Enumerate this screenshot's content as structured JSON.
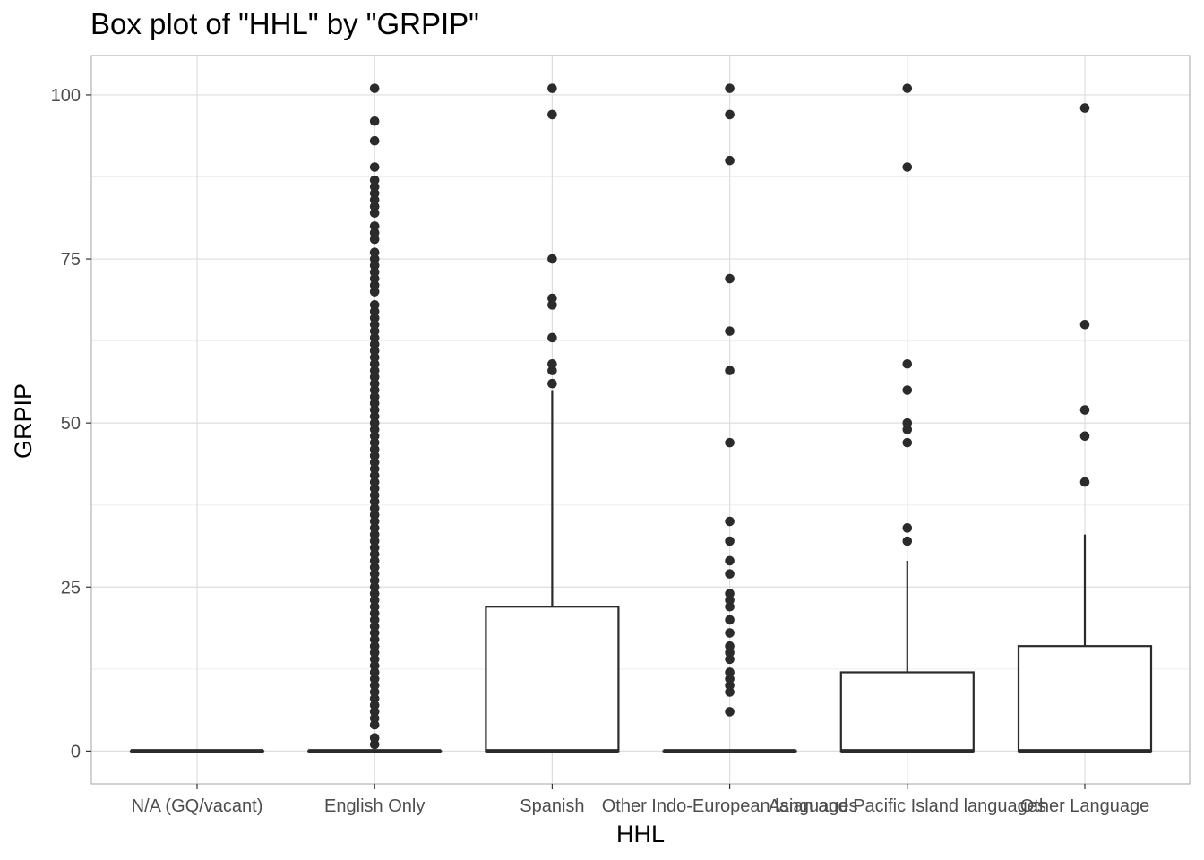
{
  "chart_data": {
    "type": "box",
    "title": "Box plot of \"HHL\" by \"GRPIP\"",
    "xlabel": "HHL",
    "ylabel": "GRPIP",
    "ylim": [
      -5,
      106
    ],
    "yticks": [
      0,
      25,
      50,
      75,
      100
    ],
    "grid": true,
    "categories": [
      "N/A (GQ/vacant)",
      "English Only",
      "Spanish",
      "Other Indo-European languages",
      "Asian and Pacific Island languages",
      "Other Language"
    ],
    "boxes": [
      {
        "q1": 0,
        "median": 0,
        "q3": 0,
        "whisker_low": 0,
        "whisker_high": 0,
        "outliers": []
      },
      {
        "q1": 0,
        "median": 0,
        "q3": 0,
        "whisker_low": 0,
        "whisker_high": 0,
        "outliers": [
          1,
          2,
          4,
          5,
          6,
          7,
          8,
          9,
          10,
          11,
          12,
          13,
          14,
          15,
          16,
          17,
          18,
          19,
          20,
          21,
          22,
          23,
          24,
          25,
          26,
          27,
          28,
          29,
          30,
          31,
          32,
          33,
          34,
          35,
          36,
          37,
          38,
          39,
          40,
          41,
          42,
          43,
          44,
          45,
          46,
          47,
          48,
          49,
          50,
          51,
          52,
          53,
          54,
          55,
          56,
          57,
          58,
          59,
          60,
          61,
          62,
          63,
          64,
          65,
          66,
          67,
          68,
          70,
          71,
          72,
          73,
          74,
          75,
          76,
          78,
          79,
          80,
          82,
          83,
          84,
          85,
          86,
          87,
          89,
          93,
          96,
          101
        ]
      },
      {
        "q1": 0,
        "median": 0,
        "q3": 22,
        "whisker_low": 0,
        "whisker_high": 55,
        "outliers": [
          56,
          58,
          59,
          63,
          68,
          69,
          75,
          97,
          101
        ]
      },
      {
        "q1": 0,
        "median": 0,
        "q3": 0,
        "whisker_low": 0,
        "whisker_high": 0,
        "outliers": [
          6,
          9,
          10,
          11,
          12,
          14,
          15,
          16,
          18,
          20,
          22,
          23,
          24,
          27,
          29,
          32,
          35,
          47,
          58,
          64,
          72,
          90,
          97,
          101
        ]
      },
      {
        "q1": 0,
        "median": 0,
        "q3": 12,
        "whisker_low": 0,
        "whisker_high": 29,
        "outliers": [
          32,
          34,
          47,
          49,
          50,
          55,
          59,
          89,
          101
        ]
      },
      {
        "q1": 0,
        "median": 0,
        "q3": 16,
        "whisker_low": 0,
        "whisker_high": 33,
        "outliers": [
          41,
          48,
          52,
          65,
          98
        ]
      }
    ],
    "colors": {
      "background": "#ffffff",
      "panel_border": "#b3b3b3",
      "grid_major": "#dedede",
      "grid_minor": "#efefef",
      "box_line": "#2b2b2b",
      "point": "#2b2b2b",
      "tick_text": "#4d4d4d"
    }
  }
}
